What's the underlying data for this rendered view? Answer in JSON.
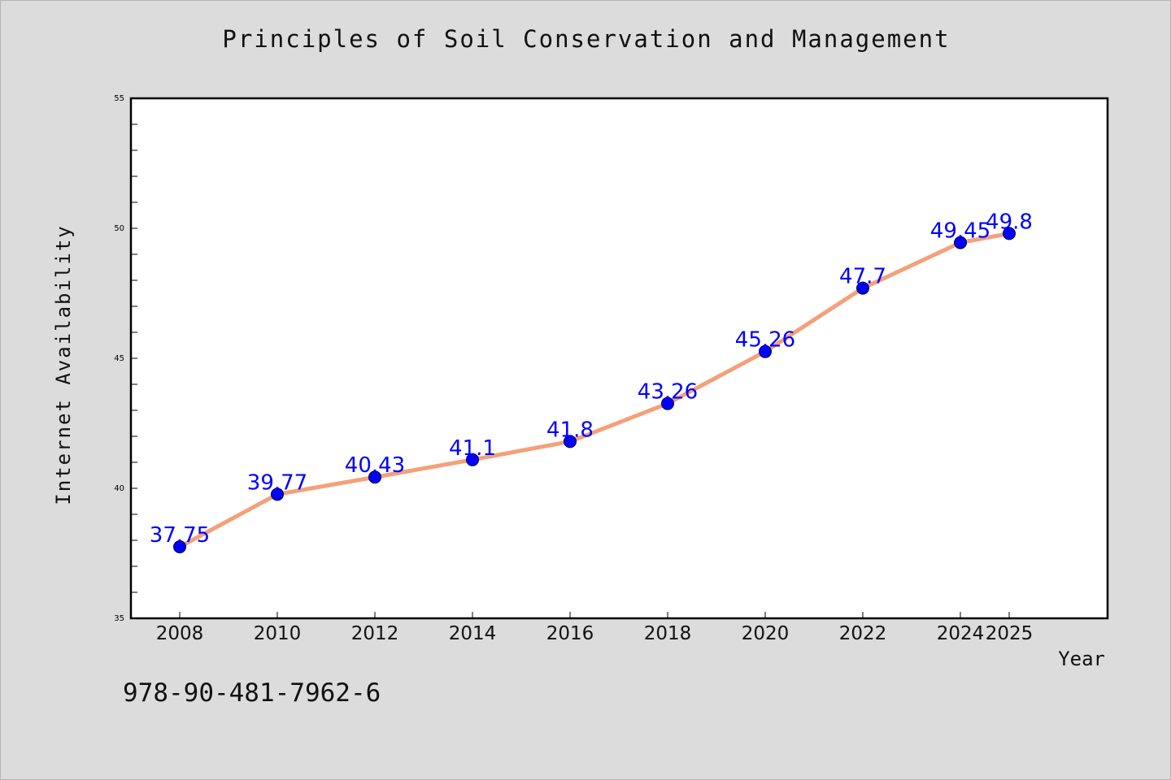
{
  "chart_data": {
    "type": "line",
    "title": "Principles of Soil Conservation and Management",
    "xlabel": "Year",
    "ylabel": "Internet Availability",
    "categories": [
      "2008",
      "2010",
      "2012",
      "2014",
      "2016",
      "2018",
      "2020",
      "2022",
      "2024",
      "2025"
    ],
    "series": [
      {
        "values": [
          37.75,
          39.77,
          40.43,
          41.1,
          41.8,
          43.26,
          45.26,
          47.7,
          49.45,
          49.8
        ],
        "data_labels": [
          "37.75",
          "39.77",
          "40.43",
          "41.1",
          "41.8",
          "43.26",
          "45.26",
          "47.7",
          "49.45",
          "49.8"
        ]
      }
    ],
    "ylim": [
      35,
      55
    ],
    "yticks": [
      "35",
      "40",
      "45",
      "50",
      "55"
    ],
    "grid": false,
    "legend": "none",
    "colors": {
      "line": "#f4a07a",
      "marker": "#0000ff",
      "data_label": "#0000ff"
    }
  },
  "footer": {
    "isbn": "978-90-481-7962-6"
  }
}
